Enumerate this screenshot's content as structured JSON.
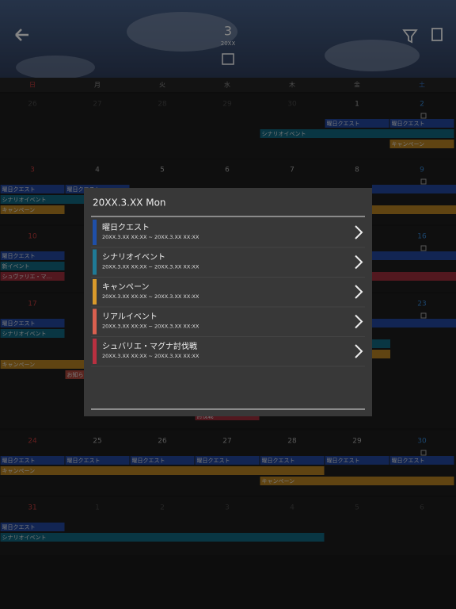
{
  "header": {
    "month": "3",
    "year": "20XX"
  },
  "calendar": {
    "weekdays": [
      "日",
      "月",
      "火",
      "水",
      "木",
      "金",
      "土"
    ],
    "weeks": [
      {
        "days": [
          "26",
          "27",
          "28",
          "29",
          "30",
          "1",
          "2"
        ],
        "events": [
          {
            "label": "曜日クエスト",
            "color": "#1c3a80"
          },
          {
            "label": "曜日クエスト",
            "color": "#1c3a80"
          },
          {
            "label": "シナリオイベント",
            "color": "#0f5468"
          },
          {
            "label": "キャンペーン",
            "color": "#94691c"
          }
        ]
      },
      {
        "days": [
          "3",
          "4",
          "5",
          "6",
          "7",
          "8",
          "9"
        ],
        "events": [
          {
            "label": "曜日クエスト",
            "color": "#1c3a80"
          },
          {
            "label": "曜日クエスト",
            "color": "#1c3a80"
          },
          {
            "label": "シナリオイベント",
            "color": "#0f5468"
          },
          {
            "label": "キャンペーン",
            "color": "#94691c"
          }
        ]
      },
      {
        "days": [
          "10",
          "11",
          "12",
          "13",
          "14",
          "15",
          "16"
        ],
        "events": [
          {
            "label": "曜日クエスト",
            "color": "#1c3a80"
          },
          {
            "label": "新イベント",
            "color": "#0f5468"
          },
          {
            "label": "シュヴァリエ・マ…",
            "color": "#7e2630"
          }
        ]
      },
      {
        "days": [
          "17",
          "18",
          "19",
          "20",
          "21",
          "22",
          "23"
        ],
        "events": [
          {
            "label": "曜日クエスト",
            "color": "#1c3a80"
          },
          {
            "label": "シナリオイベント",
            "color": "#0f5468"
          },
          {
            "label": "キャンペーン",
            "color": "#94691c"
          },
          {
            "label": "お知ら",
            "color": "#8a3a30"
          },
          {
            "label": "討伐戦",
            "color": "#7e2630"
          }
        ]
      },
      {
        "days": [
          "24",
          "25",
          "26",
          "27",
          "28",
          "29",
          "30"
        ],
        "events": [
          {
            "label": "曜日クエスト",
            "color": "#1c3a80"
          },
          {
            "label": "曜日クエスト",
            "color": "#1c3a80"
          },
          {
            "label": "曜日クエスト",
            "color": "#1c3a80"
          },
          {
            "label": "曜日クエスト",
            "color": "#1c3a80"
          },
          {
            "label": "曜日クエスト",
            "color": "#1c3a80"
          },
          {
            "label": "曜日クエスト",
            "color": "#1c3a80"
          },
          {
            "label": "曜日クエスト",
            "color": "#1c3a80"
          },
          {
            "label": "キャンペーン",
            "color": "#94691c"
          },
          {
            "label": "キャンペーン",
            "color": "#94691c"
          }
        ]
      },
      {
        "days": [
          "31",
          "1",
          "2",
          "3",
          "4",
          "5",
          "6"
        ],
        "events": [
          {
            "label": "曜日クエスト",
            "color": "#1c3a80"
          },
          {
            "label": "シナリオイベント",
            "color": "#0f5468"
          }
        ]
      }
    ]
  },
  "modal": {
    "title": "20XX.3.XX Mon",
    "items": [
      {
        "name": "曜日クエスト",
        "period": "20XX.3.XX  XX:XX ~ 20XX.3.XX  XX:XX",
        "color": "#1f4fa8"
      },
      {
        "name": "シナリオイベント",
        "period": "20XX.3.XX  XX:XX ~ 20XX.3.XX  XX:XX",
        "color": "#1f7a96"
      },
      {
        "name": "キャンペーン",
        "period": "20XX.3.XX  XX:XX ~ 20XX.3.XX  XX:XX",
        "color": "#d99a2b"
      },
      {
        "name": "リアルイベント",
        "period": "20XX.3.XX  XX:XX ~ 20XX.3.XX  XX:XX",
        "color": "#d9604f"
      },
      {
        "name": "シュバリエ・マグナ討伐戦",
        "period": "20XX.3.XX  XX:XX ~ 20XX.3.XX  XX:XX",
        "color": "#b83040"
      }
    ]
  }
}
